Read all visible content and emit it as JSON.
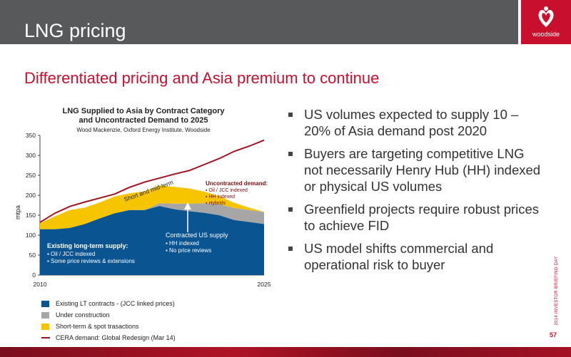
{
  "header": {
    "title": "LNG pricing",
    "logo_text": "woodside"
  },
  "subtitle": "Differentiated pricing and Asia premium to continue",
  "colors": {
    "accent": "#c8102e",
    "existing": "#0a5492",
    "construction": "#a6a6a6",
    "short_term": "#f7c400",
    "demand_line": "#a0131f"
  },
  "chart_data": {
    "type": "area",
    "title_line1": "LNG Supplied to Asia by Contract Category",
    "title_line2": "and Uncontracted Demand to 2025",
    "source": "Wood Mackenzie, Oxford Energy Institute, Woodside",
    "ylabel": "mtpa",
    "ylim": [
      0,
      350
    ],
    "yticks": [
      "0",
      "50",
      "100",
      "150",
      "200",
      "250",
      "300",
      "350"
    ],
    "x": [
      2010,
      2011,
      2012,
      2013,
      2014,
      2015,
      2016,
      2017,
      2018,
      2019,
      2020,
      2021,
      2022,
      2023,
      2024,
      2025
    ],
    "xtick_labels": [
      "2010",
      "2025"
    ],
    "series": [
      {
        "name": "Existing LT contracts - (JCC linked prices)",
        "values": [
          115,
          115,
          118,
          128,
          142,
          155,
          163,
          163,
          173,
          165,
          160,
          156,
          150,
          138,
          133,
          128
        ]
      },
      {
        "name": "Under construction",
        "values": [
          0,
          0,
          0,
          0,
          0,
          0,
          0,
          0,
          7,
          14,
          19,
          24,
          28,
          30,
          30,
          30
        ]
      },
      {
        "name": "Short-term & spot trasactions",
        "values": [
          15,
          32,
          45,
          41,
          40,
          42,
          42,
          47,
          45,
          42,
          38,
          29,
          20,
          13,
          6,
          0
        ]
      },
      {
        "name": "CERA demand: Global Redesign (Mar 14)",
        "values": [
          132,
          155,
          172,
          183,
          193,
          203,
          220,
          233,
          243,
          253,
          262,
          277,
          292,
          310,
          323,
          338
        ]
      }
    ],
    "annotations": {
      "existing_title": "Existing long-term supply:",
      "existing_items": [
        "Oil / JCC indexed",
        "Some price reviews & extensions"
      ],
      "contracted_title": "Contracted US supply",
      "contracted_items": [
        "HH indexed",
        "No price reviews"
      ],
      "uncontracted_title": "Uncontracted demand:",
      "uncontracted_items": [
        "Oil / JCC indexed",
        "HH indexed",
        "Hybrids"
      ],
      "short_mid": "Short and mid-term"
    }
  },
  "bullets": [
    "US volumes expected to supply 10 – 20% of Asia demand post 2020",
    "Buyers are targeting competitive LNG not necessarily Henry Hub (HH) indexed or physical US volumes",
    "Greenfield projects require robust prices to achieve FID",
    "US model shifts commercial and operational risk to buyer"
  ],
  "side_text": "2014 INVESTOR BRIEFING DAY",
  "page_number": "57"
}
